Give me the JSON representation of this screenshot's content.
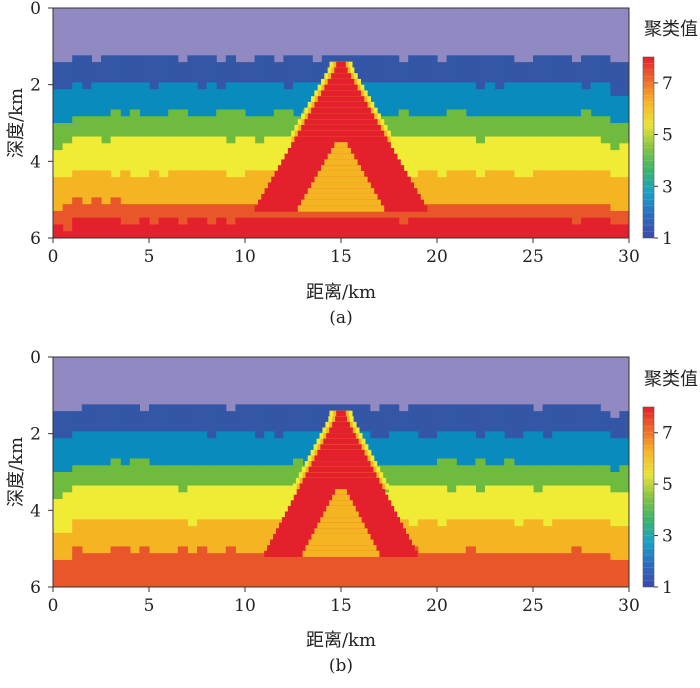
{
  "chart_data": [
    {
      "type": "heatmap",
      "tag": "(a)",
      "xlabel": "距离/km",
      "ylabel": "深度/km",
      "xlim": [
        0,
        30
      ],
      "ylim": [
        6,
        0
      ],
      "xticks": [
        "0",
        "5",
        "10",
        "15",
        "20",
        "25",
        "30"
      ],
      "yticks": [
        "0",
        "2",
        "4",
        "6"
      ],
      "colorbar": {
        "title": "聚类值",
        "range": [
          1,
          8
        ],
        "ticks": [
          "1",
          "3",
          "5",
          "7"
        ]
      },
      "layers": [
        {
          "cluster": 1,
          "top": 0.0,
          "bottom": 1.3
        },
        {
          "cluster": 2,
          "top": 1.3,
          "bottom": 2.0
        },
        {
          "cluster": 3,
          "top": 2.0,
          "bottom": 2.8
        },
        {
          "cluster": 4,
          "top": 2.8,
          "bottom": 3.4
        },
        {
          "cluster": 5,
          "top": 3.4,
          "bottom": 4.3
        },
        {
          "cluster": 6,
          "top": 4.3,
          "bottom": 5.1
        },
        {
          "cluster": 7,
          "top": 5.1,
          "bottom": 5.5
        },
        {
          "cluster": 8,
          "top": 5.5,
          "bottom": 6.0
        }
      ],
      "anomaly": {
        "center_x": 15,
        "apex_depth": 1.4,
        "shell_cluster": 8,
        "core_cluster": 6,
        "base_depth": 5.3,
        "half_width": 4.5
      }
    },
    {
      "type": "heatmap",
      "tag": "(b)",
      "xlabel": "距离/km",
      "ylabel": "深度/km",
      "xlim": [
        0,
        30
      ],
      "ylim": [
        6,
        0
      ],
      "xticks": [
        "0",
        "5",
        "10",
        "15",
        "20",
        "25",
        "30"
      ],
      "yticks": [
        "0",
        "2",
        "4",
        "6"
      ],
      "colorbar": {
        "title": "聚类值",
        "range": [
          1,
          8
        ],
        "ticks": [
          "1",
          "3",
          "5",
          "7"
        ]
      },
      "layers": [
        {
          "cluster": 1,
          "top": 0.0,
          "bottom": 1.3
        },
        {
          "cluster": 2,
          "top": 1.3,
          "bottom": 2.0
        },
        {
          "cluster": 3,
          "top": 2.0,
          "bottom": 2.8
        },
        {
          "cluster": 4,
          "top": 2.8,
          "bottom": 3.4
        },
        {
          "cluster": 5,
          "top": 3.4,
          "bottom": 4.3
        },
        {
          "cluster": 6,
          "top": 4.3,
          "bottom": 5.1
        },
        {
          "cluster": 7,
          "top": 5.1,
          "bottom": 6.0
        }
      ],
      "anomaly": {
        "center_x": 15,
        "apex_depth": 1.4,
        "shell_cluster": 8,
        "core_cluster": 6,
        "base_depth": 5.2,
        "half_width": 4.0
      }
    }
  ],
  "palette": {
    "c1": "#9189c2",
    "c2": "#3356a6",
    "c3": "#0a8bbd",
    "c4": "#6fbb3e",
    "c5": "#f0ec35",
    "c6": "#f5b522",
    "c7": "#e8562a",
    "c8": "#e3202c"
  },
  "colorbar_gradient": [
    "#3b4aa8",
    "#2b6cc0",
    "#1aa0c8",
    "#3cb46a",
    "#86c441",
    "#e8e23a",
    "#f6b426",
    "#ec6a2b",
    "#e3202c"
  ]
}
